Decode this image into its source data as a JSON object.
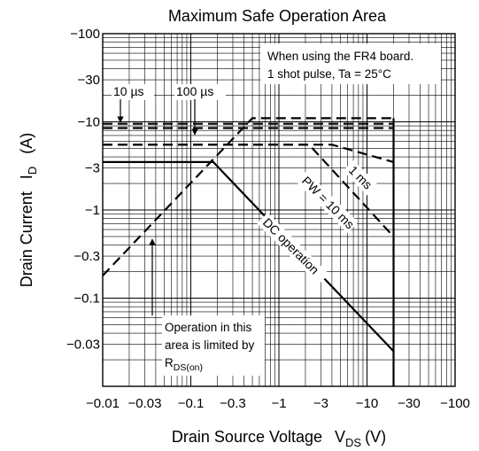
{
  "chart_data": {
    "type": "line",
    "title": "Maximum Safe Operation Area",
    "xlabel": "Drain Source Voltage",
    "xlabel_symbol": "V",
    "xlabel_sub": "DS",
    "xlabel_unit": "(V)",
    "ylabel": "Drain Current",
    "ylabel_symbol": "I",
    "ylabel_sub": "D",
    "ylabel_unit": "(A)",
    "x_scale": "log",
    "y_scale": "log",
    "xlim": [
      -0.01,
      -100
    ],
    "ylim": [
      -0.01,
      -100
    ],
    "grid": true,
    "x_ticks": [
      {
        "value": -0.01,
        "label": "−0.01"
      },
      {
        "value": -0.03,
        "label": "−0.03"
      },
      {
        "value": -0.1,
        "label": "−0.1"
      },
      {
        "value": -0.3,
        "label": "−0.3"
      },
      {
        "value": -1,
        "label": "−1"
      },
      {
        "value": -3,
        "label": "−3"
      },
      {
        "value": -10,
        "label": "−10"
      },
      {
        "value": -30,
        "label": "−30"
      },
      {
        "value": -100,
        "label": "−100"
      }
    ],
    "y_ticks": [
      {
        "value": -100,
        "label": "−100"
      },
      {
        "value": -30,
        "label": "−30"
      },
      {
        "value": -10,
        "label": "−10"
      },
      {
        "value": -3,
        "label": "−3"
      },
      {
        "value": -1,
        "label": "−1"
      },
      {
        "value": -0.3,
        "label": "−0.3"
      },
      {
        "value": -0.1,
        "label": "−0.1"
      },
      {
        "value": -0.03,
        "label": "−0.03"
      }
    ],
    "series": [
      {
        "style": "dashed",
        "x": [
          -0.01,
          -0.5,
          -20
        ],
        "y": [
          -0.18,
          -11,
          -11
        ]
      },
      {
        "style": "dashed",
        "x": [
          -0.01,
          -20
        ],
        "y": [
          -9.5,
          -9.5
        ]
      },
      {
        "style": "dashed",
        "x": [
          -0.01,
          -20
        ],
        "y": [
          -8.5,
          -8.5
        ]
      },
      {
        "style": "dashed",
        "x": [
          -0.01,
          -4,
          -20
        ],
        "y": [
          -5.5,
          -5.5,
          -3.5
        ]
      },
      {
        "style": "dashed",
        "x": [
          -0.01,
          -2.2,
          -20
        ],
        "y": [
          -5.5,
          -5.5,
          -0.5
        ]
      },
      {
        "style": "solid",
        "x": [
          -0.01,
          -0.18,
          -20
        ],
        "y": [
          -3.5,
          -3.5,
          -0.025
        ]
      },
      {
        "style": "solid",
        "x": [
          -20,
          -20
        ],
        "y": [
          -0.01,
          -11
        ]
      }
    ],
    "annotations": {
      "note_line1": "When using the FR4 board.",
      "note_line2": "1 shot pulse, Ta = 25°C",
      "label_10us": "10 µs",
      "label_100us": "100 µs",
      "label_1ms": "1 ms",
      "label_10ms": "PW = 10 ms",
      "label_dc": "DC operation",
      "rds_line1": "Operation in this",
      "rds_line2": "area is limited by",
      "rds_line3_main": "R",
      "rds_line3_sub": "DS(on)"
    }
  }
}
